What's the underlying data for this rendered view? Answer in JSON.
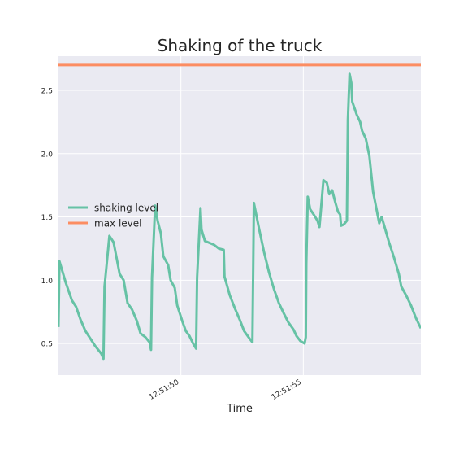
{
  "chart_data": {
    "type": "line",
    "title": "Shaking of the truck",
    "xlabel": "Time",
    "ylabel": "",
    "xlim_seconds": [
      45.0,
      59.8
    ],
    "ylim": [
      0.25,
      2.77
    ],
    "x_ticks": [
      {
        "label": "12:51:50",
        "value": 50
      },
      {
        "label": "12:51:55",
        "value": 55
      }
    ],
    "y_ticks": [
      {
        "label": "0.5",
        "value": 0.5
      },
      {
        "label": "1.0",
        "value": 1.0
      },
      {
        "label": "1.5",
        "value": 1.5
      },
      {
        "label": "2.0",
        "value": 2.0
      },
      {
        "label": "2.5",
        "value": 2.5
      }
    ],
    "grid": true,
    "legend_position": "center-left",
    "colors": {
      "background": "#eaeaf2",
      "grid": "#ffffff",
      "shaking": "#66c2a5",
      "max": "#fc8d62",
      "text": "#262626"
    },
    "series": [
      {
        "name": "shaking level",
        "color": "#66c2a5",
        "points": [
          [
            45.0,
            0.63
          ],
          [
            45.04,
            1.15
          ],
          [
            45.3,
            0.98
          ],
          [
            45.55,
            0.84
          ],
          [
            45.72,
            0.79
          ],
          [
            45.9,
            0.69
          ],
          [
            46.1,
            0.6
          ],
          [
            46.3,
            0.54
          ],
          [
            46.5,
            0.48
          ],
          [
            46.75,
            0.42
          ],
          [
            46.84,
            0.38
          ],
          [
            46.88,
            0.95
          ],
          [
            47.08,
            1.35
          ],
          [
            47.25,
            1.3
          ],
          [
            47.38,
            1.17
          ],
          [
            47.5,
            1.05
          ],
          [
            47.66,
            1.0
          ],
          [
            47.82,
            0.82
          ],
          [
            48.0,
            0.77
          ],
          [
            48.2,
            0.68
          ],
          [
            48.35,
            0.58
          ],
          [
            48.55,
            0.55
          ],
          [
            48.72,
            0.51
          ],
          [
            48.78,
            0.45
          ],
          [
            48.82,
            1.02
          ],
          [
            48.95,
            1.59
          ],
          [
            49.05,
            1.47
          ],
          [
            49.18,
            1.37
          ],
          [
            49.28,
            1.19
          ],
          [
            49.48,
            1.12
          ],
          [
            49.58,
            1.0
          ],
          [
            49.75,
            0.94
          ],
          [
            49.85,
            0.8
          ],
          [
            50.05,
            0.68
          ],
          [
            50.2,
            0.6
          ],
          [
            50.35,
            0.56
          ],
          [
            50.5,
            0.5
          ],
          [
            50.62,
            0.46
          ],
          [
            50.66,
            1.02
          ],
          [
            50.8,
            1.57
          ],
          [
            50.84,
            1.4
          ],
          [
            50.98,
            1.31
          ],
          [
            51.35,
            1.28
          ],
          [
            51.55,
            1.25
          ],
          [
            51.75,
            1.24
          ],
          [
            51.78,
            1.03
          ],
          [
            52.0,
            0.88
          ],
          [
            52.2,
            0.78
          ],
          [
            52.4,
            0.69
          ],
          [
            52.58,
            0.6
          ],
          [
            52.8,
            0.54
          ],
          [
            52.92,
            0.51
          ],
          [
            52.95,
            1.05
          ],
          [
            52.98,
            1.61
          ],
          [
            53.2,
            1.4
          ],
          [
            53.4,
            1.22
          ],
          [
            53.6,
            1.06
          ],
          [
            53.8,
            0.93
          ],
          [
            54.0,
            0.82
          ],
          [
            54.2,
            0.74
          ],
          [
            54.38,
            0.67
          ],
          [
            54.6,
            0.61
          ],
          [
            54.72,
            0.56
          ],
          [
            54.88,
            0.52
          ],
          [
            55.05,
            0.5
          ],
          [
            55.1,
            0.55
          ],
          [
            55.12,
            1.13
          ],
          [
            55.18,
            1.66
          ],
          [
            55.28,
            1.56
          ],
          [
            55.42,
            1.52
          ],
          [
            55.58,
            1.47
          ],
          [
            55.66,
            1.42
          ],
          [
            55.82,
            1.79
          ],
          [
            55.96,
            1.77
          ],
          [
            56.06,
            1.68
          ],
          [
            56.18,
            1.71
          ],
          [
            56.3,
            1.62
          ],
          [
            56.42,
            1.54
          ],
          [
            56.5,
            1.52
          ],
          [
            56.54,
            1.43
          ],
          [
            56.65,
            1.44
          ],
          [
            56.78,
            1.47
          ],
          [
            56.82,
            2.27
          ],
          [
            56.89,
            2.63
          ],
          [
            56.96,
            2.56
          ],
          [
            57.0,
            2.41
          ],
          [
            57.18,
            2.31
          ],
          [
            57.32,
            2.25
          ],
          [
            57.4,
            2.18
          ],
          [
            57.55,
            2.12
          ],
          [
            57.7,
            1.98
          ],
          [
            57.85,
            1.7
          ],
          [
            58.0,
            1.55
          ],
          [
            58.1,
            1.45
          ],
          [
            58.2,
            1.5
          ],
          [
            58.35,
            1.4
          ],
          [
            58.5,
            1.3
          ],
          [
            58.7,
            1.18
          ],
          [
            58.9,
            1.05
          ],
          [
            59.0,
            0.95
          ],
          [
            59.2,
            0.88
          ],
          [
            59.4,
            0.8
          ],
          [
            59.6,
            0.7
          ],
          [
            59.8,
            0.62
          ]
        ]
      },
      {
        "name": "max level",
        "color": "#fc8d62",
        "points": [
          [
            45.0,
            2.7
          ],
          [
            59.8,
            2.7
          ]
        ]
      }
    ]
  }
}
